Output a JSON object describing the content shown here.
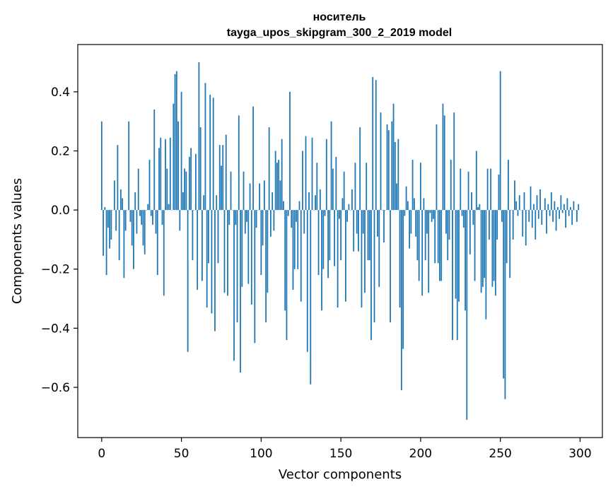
{
  "chart_data": {
    "type": "bar",
    "title": "носитель",
    "subtitle": "tayga_upos_skipgram_300_2_2019 model",
    "xlabel": "Vector components",
    "ylabel": "Components values",
    "xlim": [
      -15,
      314
    ],
    "ylim": [
      -0.77,
      0.56
    ],
    "xticks": [
      0,
      50,
      100,
      150,
      200,
      250,
      300
    ],
    "yticks": [
      0.4,
      0.2,
      0.0,
      -0.2,
      -0.4,
      -0.6
    ],
    "ytick_labels": [
      "0.4",
      "0.2",
      "0.0",
      "−0.2",
      "−0.4",
      "−0.6"
    ],
    "grid": false,
    "bar_color": "#1f77b4",
    "values": [
      0.3,
      -0.155,
      0.01,
      -0.22,
      -0.06,
      -0.13,
      -0.1,
      0.0,
      0.1,
      -0.07,
      0.22,
      -0.17,
      0.07,
      0.04,
      -0.23,
      -0.07,
      0.0,
      0.3,
      -0.04,
      -0.12,
      -0.2,
      0.06,
      -0.08,
      0.14,
      -0.02,
      -0.05,
      -0.12,
      -0.15,
      0.0,
      0.02,
      0.17,
      -0.02,
      -0.05,
      0.34,
      -0.08,
      -0.22,
      0.21,
      0.245,
      -0.05,
      -0.29,
      0.24,
      0.14,
      0.02,
      0.245,
      0.0,
      0.36,
      0.46,
      0.47,
      0.3,
      -0.07,
      0.4,
      0.06,
      0.14,
      0.13,
      -0.48,
      0.18,
      0.21,
      -0.17,
      0.0,
      0.19,
      -0.27,
      0.5,
      0.28,
      -0.24,
      0.05,
      0.43,
      -0.33,
      -0.18,
      0.39,
      -0.35,
      0.38,
      -0.41,
      0.05,
      -0.18,
      0.22,
      0.15,
      0.22,
      -0.28,
      0.255,
      -0.29,
      -0.05,
      0.13,
      0.0,
      -0.51,
      -0.05,
      -0.38,
      0.32,
      -0.55,
      -0.26,
      0.13,
      -0.08,
      -0.04,
      -0.25,
      0.09,
      -0.32,
      0.35,
      -0.45,
      -0.06,
      0.0,
      0.09,
      -0.22,
      -0.12,
      0.1,
      -0.38,
      -0.28,
      0.28,
      -0.09,
      0.06,
      -0.07,
      0.2,
      0.16,
      0.17,
      0.1,
      0.24,
      0.03,
      -0.34,
      -0.44,
      -0.02,
      0.4,
      -0.06,
      -0.27,
      -0.2,
      -0.04,
      -0.2,
      0.03,
      -0.31,
      0.2,
      -0.08,
      0.25,
      -0.48,
      0.06,
      -0.59,
      0.245,
      0.0,
      0.05,
      0.16,
      -0.22,
      0.07,
      -0.34,
      -0.2,
      -0.02,
      0.24,
      -0.23,
      -0.17,
      0.3,
      0.14,
      -0.19,
      0.18,
      -0.33,
      -0.03,
      -0.17,
      0.04,
      0.13,
      -0.31,
      -0.04,
      0.02,
      0.0,
      0.07,
      -0.14,
      0.16,
      -0.08,
      -0.14,
      0.28,
      -0.33,
      -0.08,
      -0.28,
      0.16,
      -0.17,
      -0.17,
      -0.44,
      0.45,
      -0.38,
      0.44,
      -0.09,
      -0.26,
      0.33,
      0.0,
      -0.11,
      0.0,
      0.29,
      0.27,
      -0.38,
      0.3,
      0.36,
      0.23,
      0.09,
      0.24,
      -0.33,
      -0.61,
      -0.47,
      -0.02,
      0.08,
      0.03,
      -0.13,
      -0.08,
      0.17,
      0.04,
      -0.09,
      -0.17,
      -0.24,
      0.16,
      -0.29,
      0.04,
      -0.17,
      -0.08,
      -0.28,
      -0.01,
      -0.04,
      -0.03,
      -0.18,
      0.29,
      -0.18,
      -0.24,
      -0.24,
      0.36,
      0.32,
      -0.08,
      -0.17,
      -0.1,
      0.17,
      -0.44,
      0.33,
      -0.3,
      -0.44,
      -0.31,
      0.14,
      -0.02,
      -0.06,
      -0.34,
      -0.71,
      0.13,
      -0.15,
      0.06,
      -0.05,
      -0.24,
      0.2,
      0.01,
      0.02,
      -0.28,
      -0.26,
      -0.23,
      -0.37,
      0.14,
      -0.1,
      0.14,
      -0.26,
      -0.24,
      -0.29,
      -0.1,
      0.12,
      0.47,
      -0.04,
      -0.57,
      -0.64,
      -0.18,
      0.17,
      -0.23,
      0.0,
      -0.1,
      0.1,
      0.03,
      -0.02,
      0.05,
      0.0,
      -0.09,
      0.06,
      -0.12,
      0.0,
      -0.04,
      0.08,
      -0.06,
      0.02,
      -0.1,
      0.05,
      -0.03,
      0.07,
      -0.05,
      0.0,
      0.04,
      -0.08,
      0.02,
      -0.02,
      0.06,
      -0.04,
      0.03,
      -0.07,
      0.01,
      -0.03,
      0.05,
      -0.01,
      0.02,
      -0.06,
      0.04,
      -0.02,
      0.01,
      -0.05,
      0.03,
      0.0,
      -0.04,
      0.02
    ]
  }
}
